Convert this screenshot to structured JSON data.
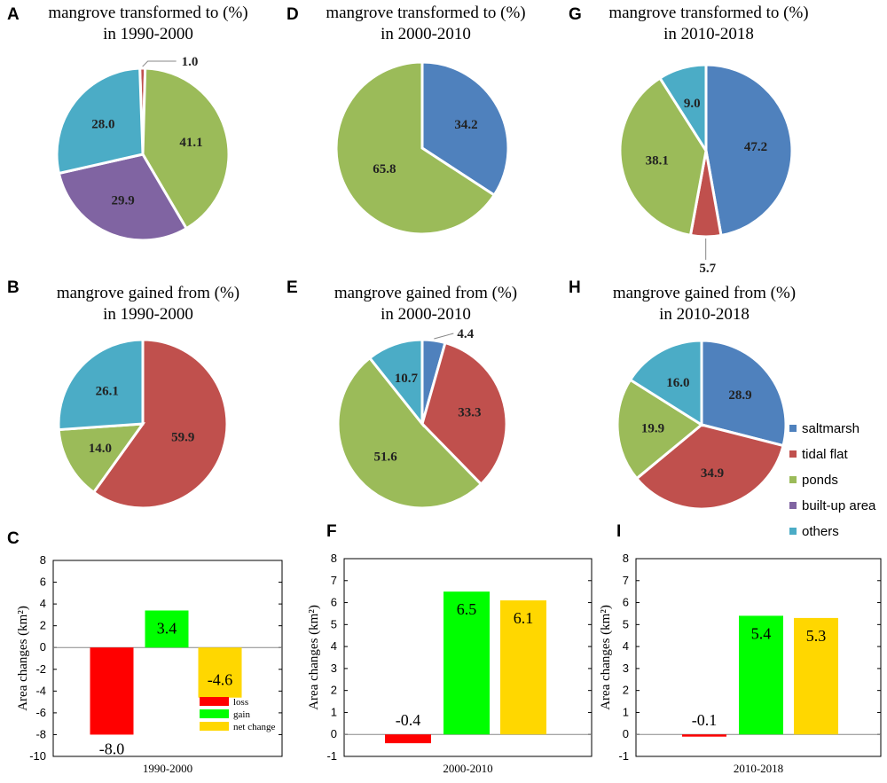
{
  "colors": {
    "saltmarsh": "#4F81BD",
    "tidal_flat": "#C0504D",
    "ponds": "#9BBB59",
    "built_up_area": "#8064A2",
    "others": "#4BACC6",
    "loss": "#FF0000",
    "gain": "#00FF00",
    "net_change": "#FFD700"
  },
  "legend": {
    "items": [
      {
        "key": "saltmarsh",
        "label": "saltmarsh"
      },
      {
        "key": "tidal_flat",
        "label": "tidal flat"
      },
      {
        "key": "ponds",
        "label": "ponds"
      },
      {
        "key": "built_up_area",
        "label": "built-up area"
      },
      {
        "key": "others",
        "label": "others"
      }
    ]
  },
  "bar_legend": {
    "items": [
      {
        "key": "loss",
        "label": "loss"
      },
      {
        "key": "gain",
        "label": "gain"
      },
      {
        "key": "net_change",
        "label": "net change"
      }
    ]
  },
  "chart_data": [
    {
      "panel": "A",
      "type": "pie",
      "title_line1": "mangrove transformed to (%)",
      "title_line2": "in 1990-2000",
      "slices": [
        {
          "category": "tidal_flat",
          "value": 1.0,
          "label": "1.0"
        },
        {
          "category": "ponds",
          "value": 41.1,
          "label": "41.1"
        },
        {
          "category": "built_up_area",
          "value": 29.9,
          "label": "29.9"
        },
        {
          "category": "others",
          "value": 28.0,
          "label": "28.0"
        }
      ]
    },
    {
      "panel": "D",
      "type": "pie",
      "title_line1": "mangrove transformed to (%)",
      "title_line2": "in 2000-2010",
      "slices": [
        {
          "category": "saltmarsh",
          "value": 34.2,
          "label": "34.2"
        },
        {
          "category": "ponds",
          "value": 65.8,
          "label": "65.8"
        }
      ]
    },
    {
      "panel": "G",
      "type": "pie",
      "title_line1": "mangrove transformed  to (%)",
      "title_line2": "in 2010-2018",
      "slices": [
        {
          "category": "saltmarsh",
          "value": 47.2,
          "label": "47.2"
        },
        {
          "category": "tidal_flat",
          "value": 5.7,
          "label": "5.7"
        },
        {
          "category": "ponds",
          "value": 38.1,
          "label": "38.1"
        },
        {
          "category": "others",
          "value": 9.0,
          "label": "9.0"
        }
      ]
    },
    {
      "panel": "B",
      "type": "pie",
      "title_line1": "mangrove gained from (%)",
      "title_line2": "in 1990-2000",
      "slices": [
        {
          "category": "tidal_flat",
          "value": 59.9,
          "label": "59.9"
        },
        {
          "category": "ponds",
          "value": 14.0,
          "label": "14.0"
        },
        {
          "category": "others",
          "value": 26.1,
          "label": "26.1"
        }
      ]
    },
    {
      "panel": "E",
      "type": "pie",
      "title_line1": "mangrove gained from (%)",
      "title_line2": "in 2000-2010",
      "slices": [
        {
          "category": "saltmarsh",
          "value": 4.4,
          "label": "4.4"
        },
        {
          "category": "tidal_flat",
          "value": 33.3,
          "label": "33.3"
        },
        {
          "category": "ponds",
          "value": 51.6,
          "label": "51.6"
        },
        {
          "category": "others",
          "value": 10.7,
          "label": "10.7"
        }
      ]
    },
    {
      "panel": "H",
      "type": "pie",
      "title_line1": "mangrove gained from (%)",
      "title_line2": "in 2010-2018",
      "slices": [
        {
          "category": "saltmarsh",
          "value": 28.9,
          "label": "28.9"
        },
        {
          "category": "tidal_flat",
          "value": 34.9,
          "label": "34.9"
        },
        {
          "category": "ponds",
          "value": 19.9,
          "label": "19.9"
        },
        {
          "category": "others",
          "value": 16.0,
          "label": "16.0"
        }
      ]
    },
    {
      "panel": "C",
      "type": "bar",
      "xlabel": "1990-2000",
      "ylabel": "Area changes (km²)",
      "ylim": [
        -10,
        8
      ],
      "yticks": [
        -10,
        -8,
        -6,
        -4,
        -2,
        0,
        2,
        4,
        6,
        8
      ],
      "categories": [
        "loss",
        "gain",
        "net change"
      ],
      "values": [
        -8.0,
        3.4,
        -4.6
      ],
      "labels": [
        "-8.0",
        "3.4",
        "-4.6"
      ]
    },
    {
      "panel": "F",
      "type": "bar",
      "xlabel": "2000-2010",
      "ylabel": "Area changes (km²)",
      "ylim": [
        -1,
        8
      ],
      "yticks": [
        -1,
        0,
        1,
        2,
        3,
        4,
        5,
        6,
        7,
        8
      ],
      "categories": [
        "loss",
        "gain",
        "net change"
      ],
      "values": [
        -0.4,
        6.5,
        6.1
      ],
      "labels": [
        "-0.4",
        "6.5",
        "6.1"
      ]
    },
    {
      "panel": "I",
      "type": "bar",
      "xlabel": "2010-2018",
      "ylabel": "Area changes (km²)",
      "ylim": [
        -1,
        8
      ],
      "yticks": [
        -1,
        0,
        1,
        2,
        3,
        4,
        5,
        6,
        7,
        8
      ],
      "categories": [
        "loss",
        "gain",
        "net change"
      ],
      "values": [
        -0.1,
        5.4,
        5.3
      ],
      "labels": [
        "-0.1",
        "5.4",
        "5.3"
      ]
    }
  ]
}
